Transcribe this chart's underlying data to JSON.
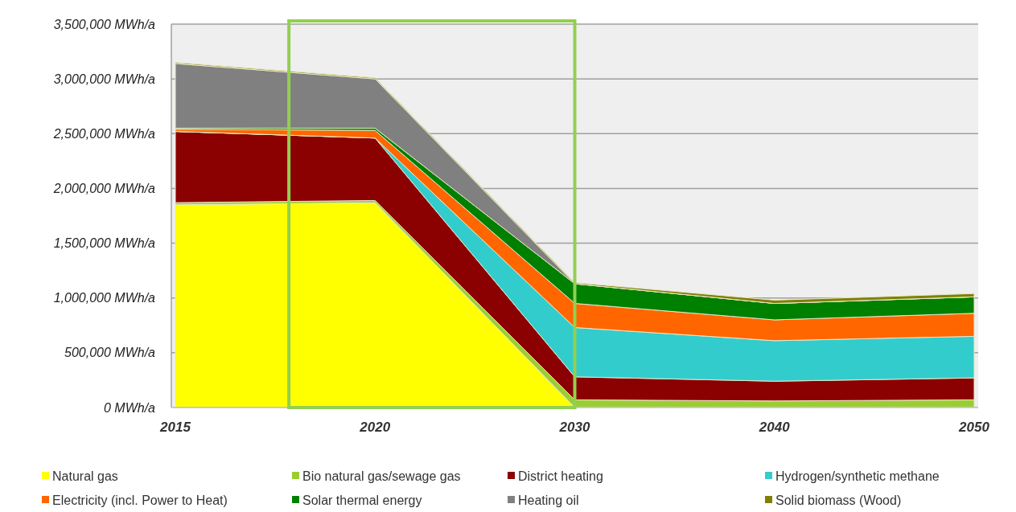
{
  "chart_data": {
    "type": "area",
    "stacked": true,
    "categories": [
      "2015",
      "2020",
      "2030",
      "2040",
      "2050"
    ],
    "ylim": [
      0,
      3500000
    ],
    "yticks": [
      {
        "value": 0,
        "label": "0 MWh/a"
      },
      {
        "value": 500000,
        "label": "500,000 MWh/a"
      },
      {
        "value": 1000000,
        "label": "1,000,000 MWh/a"
      },
      {
        "value": 1500000,
        "label": "1,500,000 MWh/a"
      },
      {
        "value": 2000000,
        "label": "2,000,000 MWh/a"
      },
      {
        "value": 2500000,
        "label": "2,500,000 MWh/a"
      },
      {
        "value": 3000000,
        "label": "3,000,000 MWh/a"
      },
      {
        "value": 3500000,
        "label": "3,500,000 MWh/a"
      }
    ],
    "grid": "y",
    "legend": "bottom",
    "series": [
      {
        "name": "Natural gas",
        "color": "#ffff00",
        "values": [
          1850000,
          1870000,
          0,
          0,
          0
        ]
      },
      {
        "name": "Bio natural gas/sewage gas",
        "color": "#9acd32",
        "values": [
          20000,
          20000,
          70000,
          60000,
          70000
        ]
      },
      {
        "name": "District heating",
        "color": "#8b0000",
        "values": [
          650000,
          570000,
          210000,
          180000,
          200000
        ]
      },
      {
        "name": "Hydrogen/synthetic methane",
        "color": "#33cccc",
        "values": [
          0,
          0,
          450000,
          370000,
          380000
        ]
      },
      {
        "name": "Electricity (incl. Power to Heat)",
        "color": "#ff6600",
        "values": [
          20000,
          70000,
          220000,
          190000,
          210000
        ]
      },
      {
        "name": "Solar thermal energy",
        "color": "#008000",
        "values": [
          10000,
          20000,
          180000,
          150000,
          150000
        ]
      },
      {
        "name": "Heating oil",
        "color": "#808080",
        "values": [
          590000,
          450000,
          0,
          0,
          0
        ]
      },
      {
        "name": "Solid biomass (Wood)",
        "color": "#808000",
        "values": [
          10000,
          10000,
          10000,
          30000,
          30000
        ]
      }
    ]
  }
}
